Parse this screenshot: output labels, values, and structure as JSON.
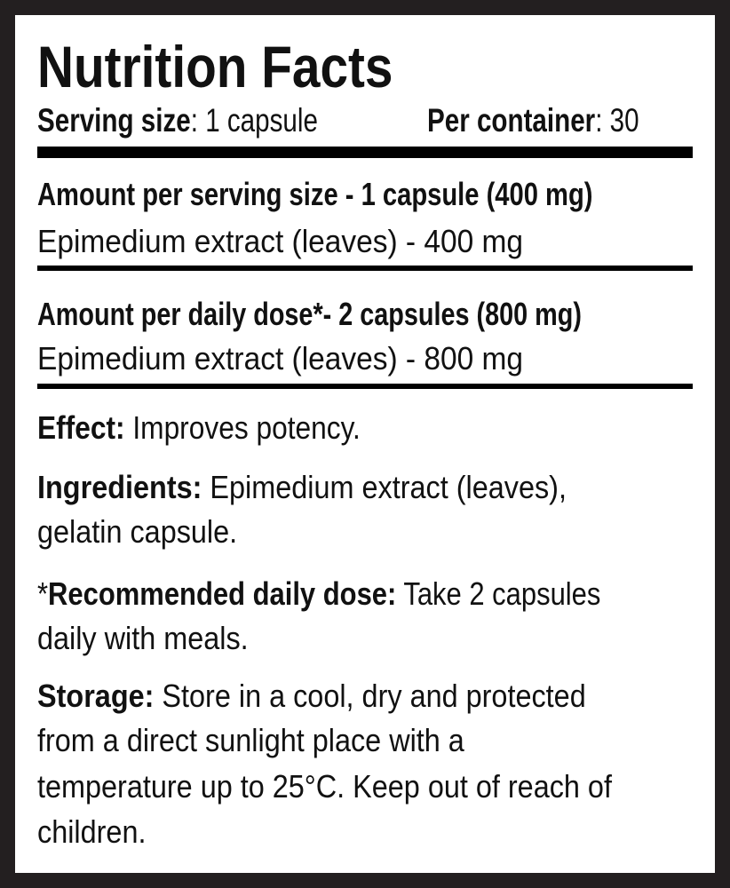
{
  "title": "Nutrition Facts",
  "serving": {
    "label": "Serving size",
    "value": ": 1 capsule"
  },
  "container": {
    "label": "Per container",
    "value": ": 30"
  },
  "per_serving": {
    "heading": "Amount per serving size - 1 capsule (400 mg)",
    "line": "Epimedium extract (leaves) - 400 mg"
  },
  "per_daily": {
    "heading": "Amount per daily dose*- 2 capsules (800 mg)",
    "line": "Epimedium extract (leaves) - 800 mg"
  },
  "effect": {
    "label": "Effect:",
    "text": " Improves potency."
  },
  "ingredients": {
    "label": "Ingredients:",
    "text1": " Epimedium extract (leaves),",
    "text2": "gelatin capsule."
  },
  "dose": {
    "prefix": "*",
    "label": "Recommended daily dose:",
    "text1": " Take 2 capsules",
    "text2": "daily with meals."
  },
  "storage": {
    "label": "Storage:",
    "text1": " Store in a cool, dry and protected",
    "text2": "from a direct sunlight place with a",
    "text3": "temperature up to 25°C. Keep out of reach of",
    "text4": "children."
  }
}
